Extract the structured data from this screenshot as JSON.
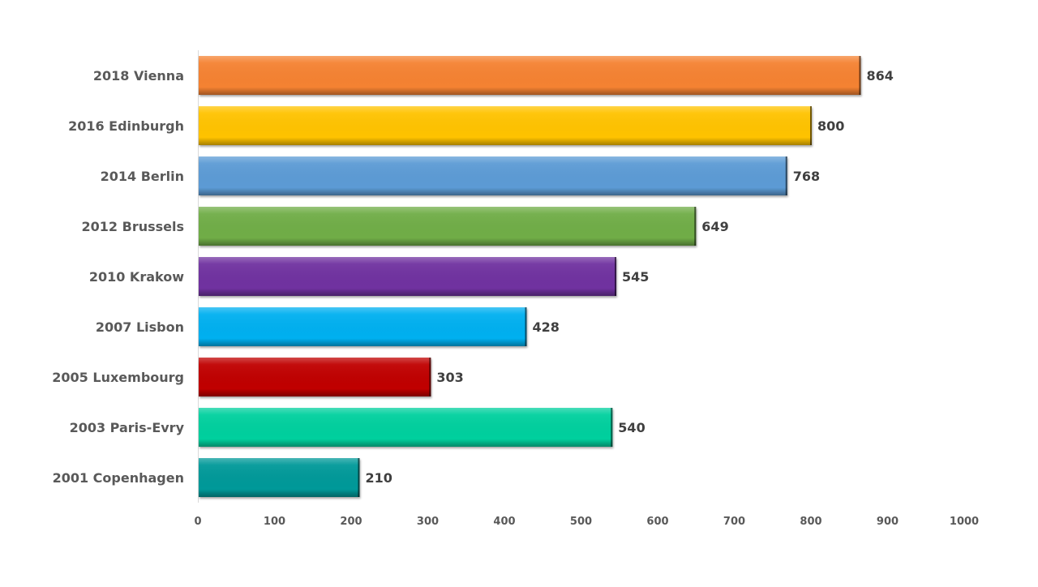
{
  "chart_data": {
    "type": "bar",
    "orientation": "horizontal",
    "categories": [
      "2018 Vienna",
      "2016 Edinburgh",
      "2014 Berlin",
      "2012 Brussels",
      "2010 Krakow",
      "2007 Lisbon",
      "2005 Luxembourg",
      "2003 Paris-Evry",
      "2001 Copenhagen"
    ],
    "values": [
      864,
      800,
      768,
      649,
      545,
      428,
      303,
      540,
      210
    ],
    "value_labels": [
      "864",
      "800",
      "768",
      "649",
      "545",
      "428",
      "303",
      "540",
      "210"
    ],
    "colors": [
      "#F58233",
      "#FFC300",
      "#5B9BD5",
      "#70AD47",
      "#7030A0",
      "#00B0F0",
      "#C00000",
      "#00D09E",
      "#009999"
    ],
    "xlim": [
      0,
      1000
    ],
    "x_ticks": [
      0,
      100,
      200,
      300,
      400,
      500,
      600,
      700,
      800,
      900,
      1000
    ],
    "x_tick_labels": [
      "0",
      "100",
      "200",
      "300",
      "400",
      "500",
      "600",
      "700",
      "800",
      "900",
      "1000"
    ],
    "title": "",
    "xlabel": "",
    "ylabel": "",
    "grid": false,
    "legend": "none"
  }
}
